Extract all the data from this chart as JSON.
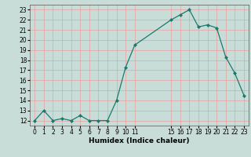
{
  "x": [
    0,
    1,
    2,
    3,
    4,
    5,
    6,
    7,
    8,
    9,
    10,
    11,
    15,
    16,
    17,
    18,
    19,
    20,
    21,
    22,
    23
  ],
  "y": [
    12,
    13,
    12,
    12.2,
    12,
    12.5,
    12,
    12,
    12,
    14,
    17.3,
    19.5,
    22,
    22.5,
    23,
    21.3,
    21.5,
    21.2,
    18.3,
    16.7,
    14.5
  ],
  "line_color": "#1a7a6e",
  "marker_color": "#1a7a6e",
  "bg_color": "#c8ddd8",
  "grid_color": "#e8a0a0",
  "xlabel": "Humidex (Indice chaleur)",
  "xlim": [
    -0.5,
    23.5
  ],
  "ylim": [
    11.5,
    23.5
  ],
  "yticks": [
    12,
    13,
    14,
    15,
    16,
    17,
    18,
    19,
    20,
    21,
    22,
    23
  ],
  "xticks": [
    0,
    1,
    2,
    3,
    4,
    5,
    6,
    7,
    8,
    9,
    10,
    11,
    15,
    16,
    17,
    18,
    19,
    20,
    21,
    22,
    23
  ],
  "tick_fontsize": 5.5,
  "label_fontsize": 6.5,
  "title": ""
}
